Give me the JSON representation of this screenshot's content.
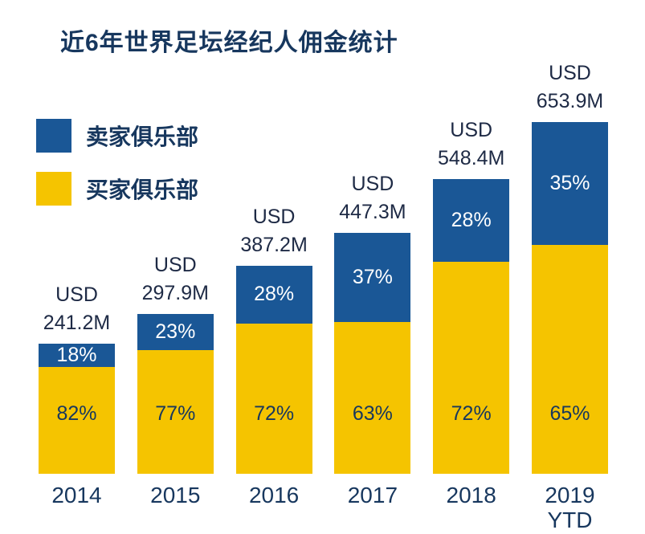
{
  "chart_data": {
    "type": "bar",
    "stacked": true,
    "title": "近6年世界足坛经纪人佣金统计",
    "currency_label": "USD",
    "categories": [
      "2014",
      "2015",
      "2016",
      "2017",
      "2018",
      "2019 YTD"
    ],
    "category_labels": [
      {
        "line1": "2014",
        "line2": ""
      },
      {
        "line1": "2015",
        "line2": ""
      },
      {
        "line1": "2016",
        "line2": ""
      },
      {
        "line1": "2017",
        "line2": ""
      },
      {
        "line1": "2018",
        "line2": ""
      },
      {
        "line1": "2019",
        "line2": "YTD"
      }
    ],
    "totals": [
      241.2,
      297.9,
      387.2,
      447.3,
      548.4,
      653.9
    ],
    "total_labels": [
      "241.2M",
      "297.9M",
      "387.2M",
      "447.3M",
      "548.4M",
      "653.9M"
    ],
    "series": [
      {
        "name": "卖家俱乐部",
        "color": "#1A5796",
        "values": [
          18,
          23,
          28,
          37,
          28,
          35
        ],
        "labels": [
          "18%",
          "23%",
          "28%",
          "37%",
          "28%",
          "35%"
        ]
      },
      {
        "name": "买家俱乐部",
        "color": "#F5C400",
        "values": [
          82,
          77,
          72,
          63,
          72,
          65
        ],
        "labels": [
          "82%",
          "77%",
          "72%",
          "63%",
          "72%",
          "65%"
        ]
      }
    ],
    "value_unit": "USD millions",
    "ylim": [
      0,
      653.9
    ],
    "grid": false,
    "legend_position": "top-left",
    "text_color": "#17375E"
  }
}
